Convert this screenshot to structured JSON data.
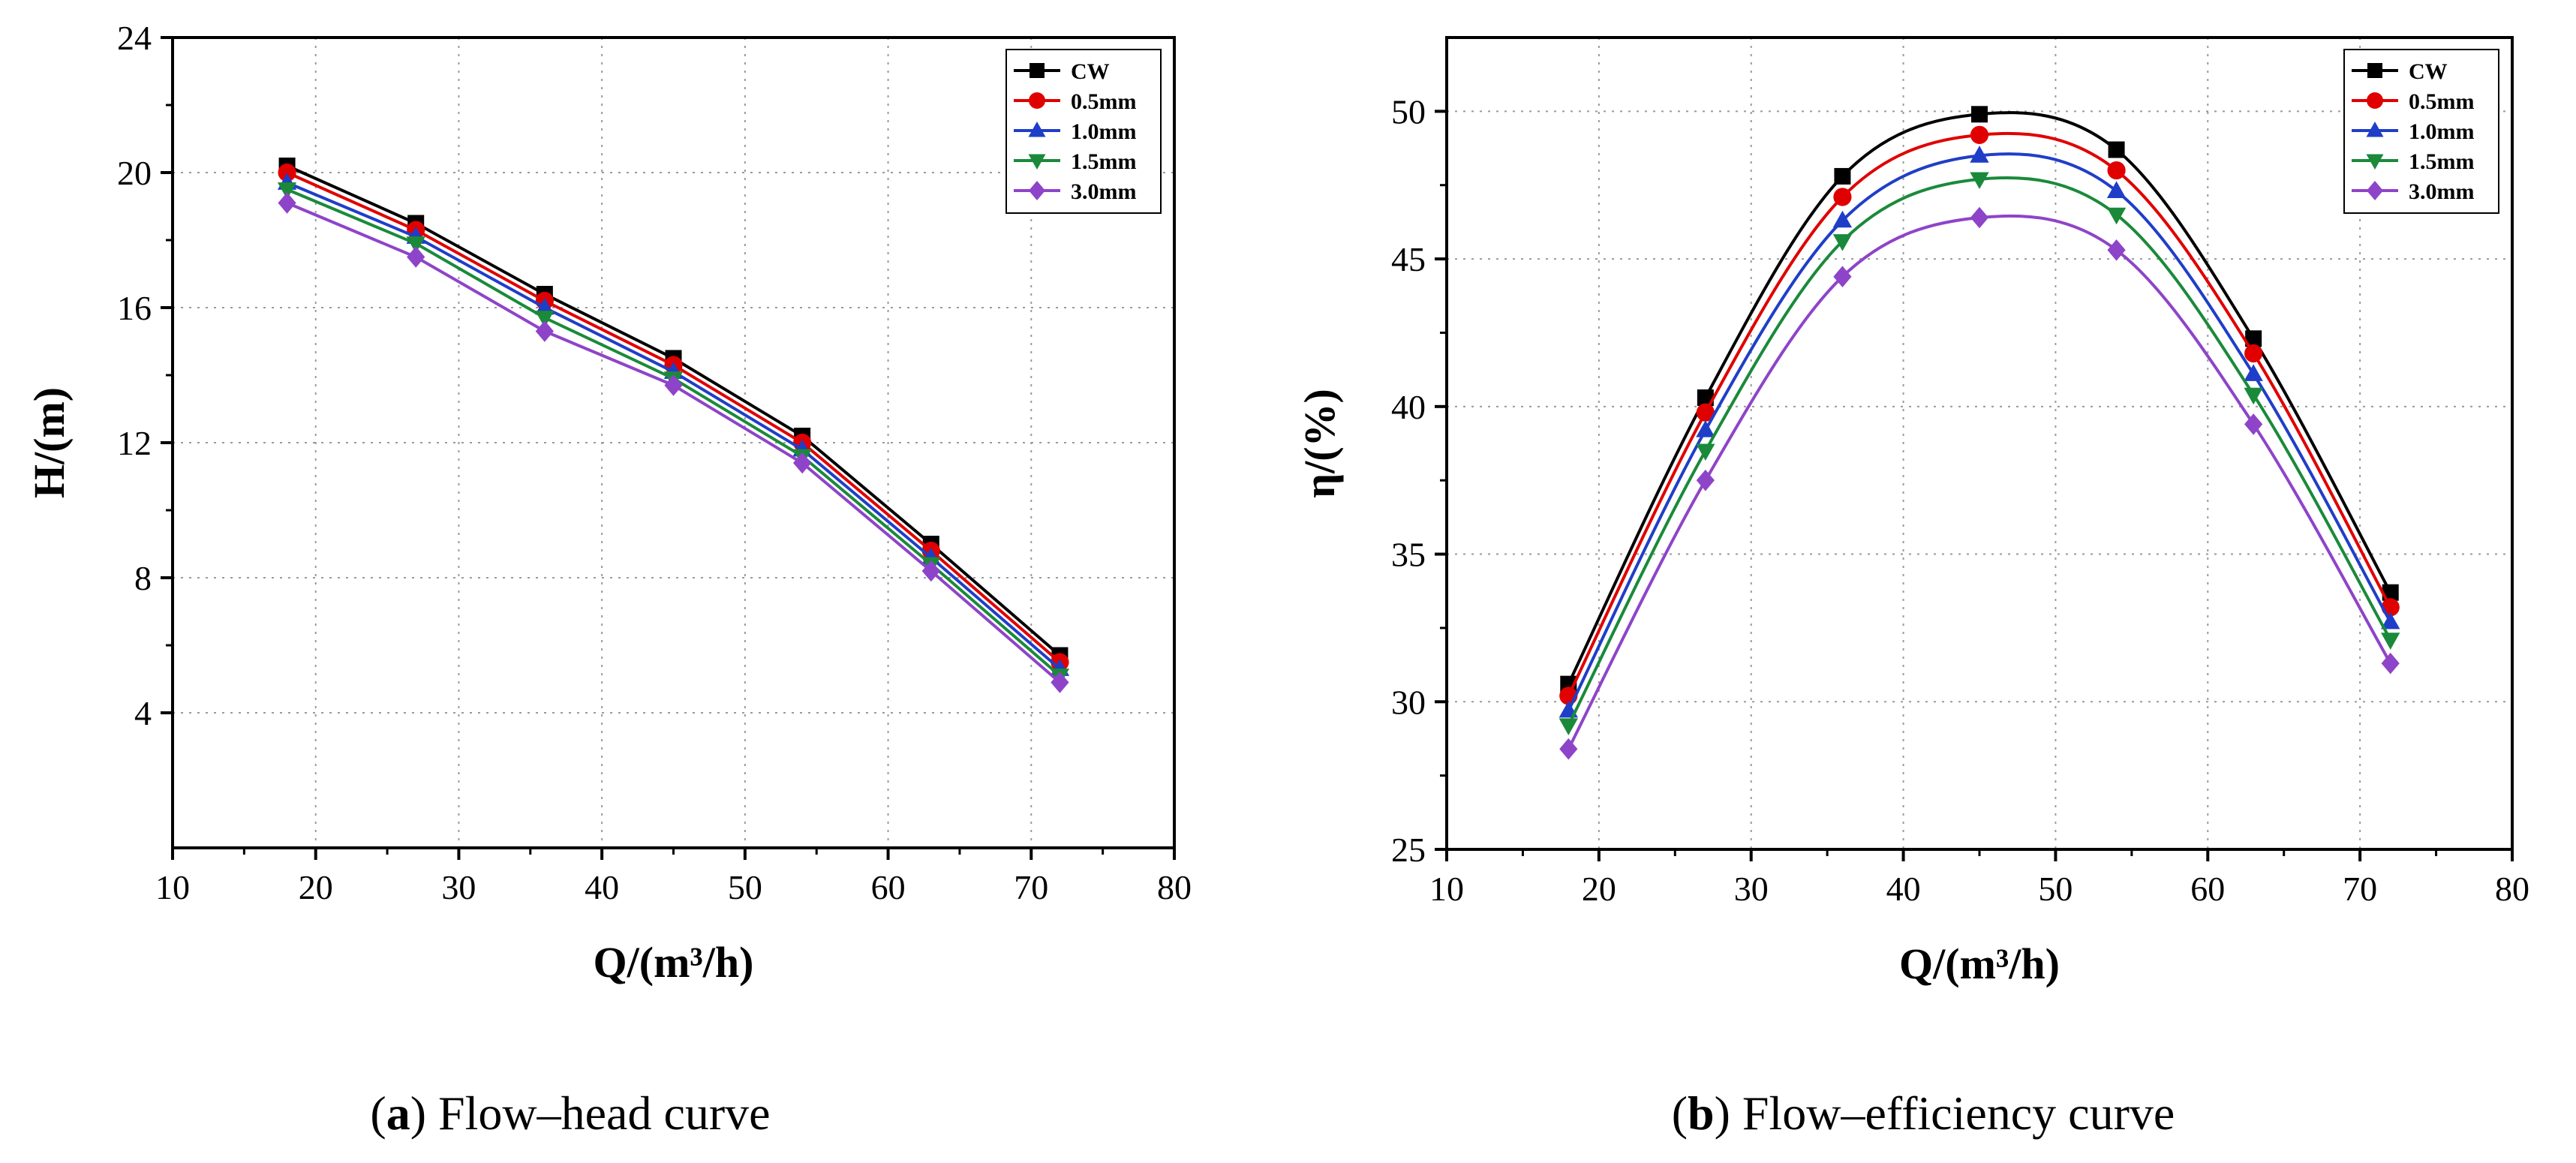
{
  "chart_data": [
    {
      "type": "line",
      "panel_letter": "a",
      "caption": "Flow–head curve",
      "xlabel": "Q/(m³/h)",
      "ylabel": "H/(m)",
      "xlim": [
        10,
        80
      ],
      "ylim": [
        0,
        24
      ],
      "xticks": [
        10,
        20,
        30,
        40,
        50,
        60,
        70,
        80
      ],
      "yticks": [
        4,
        8,
        12,
        16,
        20,
        24
      ],
      "grid": true,
      "legend_position": "top-right",
      "x": [
        18,
        27,
        36,
        45,
        54,
        63,
        72
      ],
      "series": [
        {
          "name": "CW",
          "color": "#000000",
          "marker": "square",
          "values": [
            20.2,
            18.5,
            16.4,
            14.5,
            12.2,
            9.0,
            5.7
          ]
        },
        {
          "name": "0.5mm",
          "color": "#e00000",
          "marker": "circle",
          "values": [
            20.0,
            18.3,
            16.2,
            14.3,
            12.0,
            8.8,
            5.5
          ]
        },
        {
          "name": "1.0mm",
          "color": "#1f3ec8",
          "marker": "triangle",
          "values": [
            19.7,
            18.1,
            16.0,
            14.1,
            11.8,
            8.6,
            5.3
          ]
        },
        {
          "name": "1.5mm",
          "color": "#1a8a3a",
          "marker": "tri-down",
          "values": [
            19.5,
            17.9,
            15.7,
            13.9,
            11.6,
            8.4,
            5.1
          ]
        },
        {
          "name": "3.0mm",
          "color": "#8e44c8",
          "marker": "diamond",
          "values": [
            19.1,
            17.5,
            15.3,
            13.7,
            11.4,
            8.2,
            4.9
          ]
        }
      ]
    },
    {
      "type": "line",
      "panel_letter": "b",
      "caption": "Flow–efficiency curve",
      "xlabel": "Q/(m³/h)",
      "ylabel": "η/(%)",
      "xlim": [
        10,
        80
      ],
      "ylim": [
        25,
        52.5
      ],
      "xticks": [
        10,
        20,
        30,
        40,
        50,
        60,
        70,
        80
      ],
      "yticks": [
        25,
        30,
        35,
        40,
        45,
        50
      ],
      "grid": true,
      "legend_position": "top-right",
      "x": [
        18,
        27,
        36,
        45,
        54,
        63,
        72
      ],
      "series": [
        {
          "name": "CW",
          "color": "#000000",
          "marker": "square",
          "values": [
            30.6,
            40.3,
            47.8,
            49.9,
            48.7,
            42.3,
            33.7
          ]
        },
        {
          "name": "0.5mm",
          "color": "#e00000",
          "marker": "circle",
          "values": [
            30.2,
            39.8,
            47.1,
            49.2,
            48.0,
            41.8,
            33.2
          ]
        },
        {
          "name": "1.0mm",
          "color": "#1f3ec8",
          "marker": "triangle",
          "values": [
            29.7,
            39.2,
            46.3,
            48.5,
            47.3,
            41.1,
            32.7
          ]
        },
        {
          "name": "1.5mm",
          "color": "#1a8a3a",
          "marker": "tri-down",
          "values": [
            29.2,
            38.5,
            45.6,
            47.7,
            46.5,
            40.4,
            32.1
          ]
        },
        {
          "name": "3.0mm",
          "color": "#8e44c8",
          "marker": "diamond",
          "values": [
            28.4,
            37.5,
            44.4,
            46.4,
            45.3,
            39.4,
            31.3
          ]
        }
      ]
    }
  ]
}
